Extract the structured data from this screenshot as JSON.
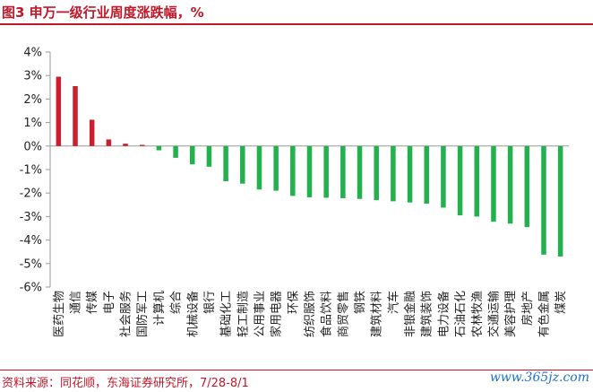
{
  "title": "图3  申万一级行业周度涨跌幅，%",
  "source": "资料来源：同花顺，东海证券研究所，7/28-8/1",
  "watermark": "www.365jz.com",
  "colors": {
    "positive": "#c8202e",
    "negative": "#22b14c",
    "accent": "#c0182a",
    "axis": "#999999"
  },
  "chart_data": {
    "type": "bar",
    "title": "申万一级行业周度涨跌幅，%",
    "xlabel": "",
    "ylabel": "",
    "ylim": [
      -6,
      4
    ],
    "yticks": [
      4,
      3,
      2,
      1,
      0,
      -1,
      -2,
      -3,
      -4,
      -5,
      -6
    ],
    "ytick_labels": [
      "4%",
      "3%",
      "2%",
      "1%",
      "0%",
      "-1%",
      "-2%",
      "-3%",
      "-4%",
      "-5%",
      "-6%"
    ],
    "grid": false,
    "legend": "none",
    "categories": [
      "医药生物",
      "通信",
      "传媒",
      "电子",
      "社会服务",
      "国防军工",
      "计算机",
      "综合",
      "机械设备",
      "银行",
      "基础化工",
      "轻工制造",
      "公用事业",
      "家用电器",
      "环保",
      "纺织服饰",
      "食品饮料",
      "商贸零售",
      "钢铁",
      "建筑材料",
      "汽车",
      "非银金融",
      "建筑装饰",
      "电力设备",
      "石油石化",
      "农林牧渔",
      "交通运输",
      "美容护理",
      "房地产",
      "有色金属",
      "煤炭"
    ],
    "values": [
      2.95,
      2.55,
      1.12,
      0.28,
      0.1,
      0.05,
      -0.18,
      -0.5,
      -0.78,
      -0.88,
      -1.5,
      -1.6,
      -1.85,
      -1.9,
      -2.12,
      -2.18,
      -2.2,
      -2.22,
      -2.25,
      -2.3,
      -2.35,
      -2.4,
      -2.45,
      -2.62,
      -2.95,
      -3.0,
      -3.22,
      -3.3,
      -3.45,
      -4.62,
      -4.7
    ]
  }
}
